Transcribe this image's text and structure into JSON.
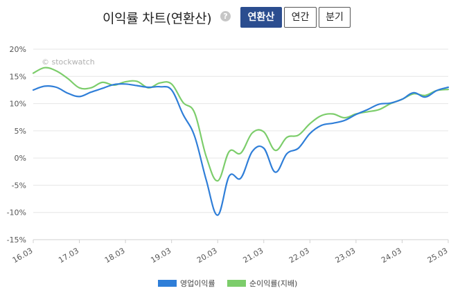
{
  "header": {
    "title": "이익률 차트(연환산)",
    "help_glyph": "?",
    "buttons": [
      {
        "label": "연환산",
        "active": true
      },
      {
        "label": "연간",
        "active": false
      },
      {
        "label": "분기",
        "active": false
      }
    ]
  },
  "watermark": "© stockwatch",
  "colors": {
    "operating": "#2f7ed8",
    "net": "#7ccd6b",
    "active_button": "#2b4d8f"
  },
  "chart_data": {
    "type": "line",
    "x_tick_labels": [
      "16.03",
      "17.03",
      "18.03",
      "19.03",
      "20.03",
      "21.03",
      "22.03",
      "23.03",
      "24.03",
      "25.03"
    ],
    "y_tick_labels": [
      "20%",
      "15%",
      "10%",
      "5%",
      "0%",
      "-5%",
      "-10%",
      "-15%"
    ],
    "ylim": [
      -15,
      20
    ],
    "y_unit": "%",
    "grid": "horizontal",
    "legend_position": "bottom-center",
    "series": [
      {
        "name": "영업이익률",
        "color": "#2f7ed8",
        "points": [
          [
            "16.03",
            12.5
          ],
          [
            "16.06",
            13.2
          ],
          [
            "16.09",
            13.0
          ],
          [
            "16.12",
            11.9
          ],
          [
            "17.03",
            11.3
          ],
          [
            "17.06",
            12.1
          ],
          [
            "17.09",
            12.8
          ],
          [
            "17.12",
            13.5
          ],
          [
            "18.03",
            13.6
          ],
          [
            "18.06",
            13.3
          ],
          [
            "18.09",
            13.0
          ],
          [
            "18.12",
            13.1
          ],
          [
            "19.03",
            12.5
          ],
          [
            "19.06",
            8.0
          ],
          [
            "19.09",
            4.0
          ],
          [
            "19.12",
            -4.0
          ],
          [
            "20.03",
            -10.5
          ],
          [
            "20.06",
            -3.3
          ],
          [
            "20.09",
            -3.7
          ],
          [
            "20.12",
            1.2
          ],
          [
            "21.03",
            1.8
          ],
          [
            "21.06",
            -2.6
          ],
          [
            "21.09",
            0.8
          ],
          [
            "21.12",
            1.8
          ],
          [
            "22.03",
            4.5
          ],
          [
            "22.06",
            6.0
          ],
          [
            "22.09",
            6.4
          ],
          [
            "22.12",
            6.9
          ],
          [
            "23.03",
            8.0
          ],
          [
            "23.06",
            8.9
          ],
          [
            "23.09",
            9.9
          ],
          [
            "23.12",
            10.1
          ],
          [
            "24.03",
            10.8
          ],
          [
            "24.06",
            12.0
          ],
          [
            "24.09",
            11.2
          ],
          [
            "24.12",
            12.4
          ],
          [
            "25.03",
            13.0
          ]
        ]
      },
      {
        "name": "순이익률(지배)",
        "color": "#7ccd6b",
        "points": [
          [
            "16.03",
            15.6
          ],
          [
            "16.06",
            16.6
          ],
          [
            "16.09",
            16.0
          ],
          [
            "16.12",
            14.6
          ],
          [
            "17.03",
            12.9
          ],
          [
            "17.06",
            12.9
          ],
          [
            "17.09",
            13.9
          ],
          [
            "17.12",
            13.4
          ],
          [
            "18.03",
            14.0
          ],
          [
            "18.06",
            14.1
          ],
          [
            "18.09",
            12.9
          ],
          [
            "18.12",
            13.8
          ],
          [
            "19.03",
            13.6
          ],
          [
            "19.06",
            10.2
          ],
          [
            "19.09",
            8.3
          ],
          [
            "19.12",
            0.3
          ],
          [
            "20.03",
            -4.2
          ],
          [
            "20.06",
            1.2
          ],
          [
            "20.09",
            0.9
          ],
          [
            "20.12",
            4.6
          ],
          [
            "21.03",
            4.8
          ],
          [
            "21.06",
            1.4
          ],
          [
            "21.09",
            3.8
          ],
          [
            "21.12",
            4.2
          ],
          [
            "22.03",
            6.3
          ],
          [
            "22.06",
            7.8
          ],
          [
            "22.09",
            8.1
          ],
          [
            "22.12",
            7.4
          ],
          [
            "23.03",
            8.1
          ],
          [
            "23.06",
            8.5
          ],
          [
            "23.09",
            8.9
          ],
          [
            "23.12",
            10.0
          ],
          [
            "24.03",
            10.8
          ],
          [
            "24.06",
            11.8
          ],
          [
            "24.09",
            11.5
          ],
          [
            "24.12",
            12.4
          ],
          [
            "25.03",
            12.6
          ]
        ]
      }
    ]
  }
}
